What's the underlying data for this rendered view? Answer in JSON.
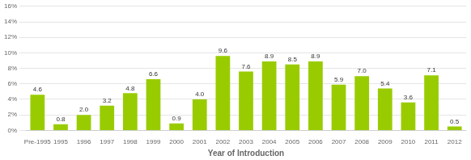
{
  "chart_data": {
    "type": "bar",
    "xlabel": "Year of Introduction",
    "categories": [
      "Pre-1995",
      "1995",
      "1996",
      "1997",
      "1998",
      "1999",
      "2000",
      "2001",
      "2002",
      "2003",
      "2004",
      "2005",
      "2006",
      "2007",
      "2008",
      "2009",
      "2010",
      "2011",
      "2012"
    ],
    "values": [
      4.6,
      0.8,
      2.0,
      3.2,
      4.8,
      6.6,
      0.9,
      4.0,
      9.6,
      7.6,
      8.9,
      8.5,
      8.9,
      5.9,
      7.0,
      5.4,
      3.6,
      7.1,
      0.5
    ],
    "value_labels": [
      "4.6",
      "0.8",
      "2.0",
      "3.2",
      "4.8",
      "6.6",
      "0.9",
      "4.0",
      "9.6",
      "7.6",
      "8.9",
      "8.5",
      "8.9",
      "5.9",
      "7.0",
      "5.4",
      "3.6",
      "7.1",
      "0.5"
    ],
    "color": "#99cc00",
    "ylim": [
      0,
      16
    ],
    "yticks": [
      {
        "value": 0,
        "label": "0%"
      },
      {
        "value": 2,
        "label": "2%"
      },
      {
        "value": 4,
        "label": "4%"
      },
      {
        "value": 6,
        "label": "6%"
      },
      {
        "value": 8,
        "label": "8%"
      },
      {
        "value": 10,
        "label": "10%"
      },
      {
        "value": 12,
        "label": "12%"
      },
      {
        "value": 14,
        "label": "14%"
      },
      {
        "value": 16,
        "label": "16%"
      }
    ],
    "grid": true,
    "data_labels": true
  }
}
